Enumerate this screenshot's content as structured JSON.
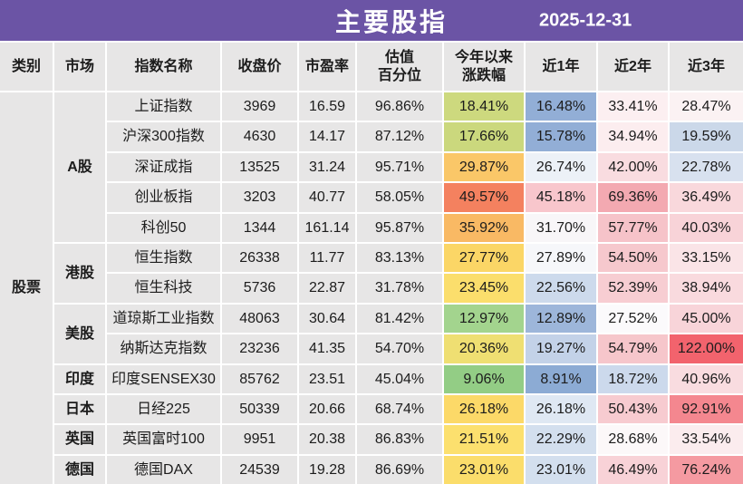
{
  "header": {
    "title": "主要股指",
    "date": "2025-12-31"
  },
  "colors": {
    "banner_purple": "#6B54A5",
    "banner_text": "#FFFFFF",
    "cell_gray": "#E7E6E6",
    "gridline_white": "#FFFFFF",
    "text_dark": "#1C1C1C"
  },
  "chart_data": {
    "type": "table",
    "title": "主要股指",
    "date": "2025-12-31",
    "category": "股票",
    "columns": [
      {
        "key": "category",
        "label": "类别"
      },
      {
        "key": "market",
        "label": "市场"
      },
      {
        "key": "index-name",
        "label": "指数名称"
      },
      {
        "key": "close-price",
        "label": "收盘价"
      },
      {
        "key": "pe-ratio",
        "label": "市盈率"
      },
      {
        "key": "valuation-percentile",
        "label": "估值\n百分位"
      },
      {
        "key": "ytd-change",
        "label": "今年以来\n涨跌幅"
      },
      {
        "key": "1y-return",
        "label": "近1年"
      },
      {
        "key": "2y-return",
        "label": "近2年"
      },
      {
        "key": "3y-return",
        "label": "近3年"
      }
    ],
    "rows": [
      {
        "market": {
          "label": "A股",
          "span": 5
        },
        "name": "上证指数",
        "close": "3969",
        "pe": "16.59",
        "pct": "96.86%",
        "ytd": {
          "t": "18.41%",
          "bg": "#CDD97E"
        },
        "y1": {
          "t": "16.48%",
          "bg": "#92AED6"
        },
        "y2": {
          "t": "33.41%",
          "bg": "#FCEFF1"
        },
        "y3": {
          "t": "28.47%",
          "bg": "#FBF2F3"
        }
      },
      {
        "name": "沪深300指数",
        "close": "4630",
        "pe": "14.17",
        "pct": "87.12%",
        "ytd": {
          "t": "17.66%",
          "bg": "#CBD87D"
        },
        "y1": {
          "t": "15.78%",
          "bg": "#92AED6"
        },
        "y2": {
          "t": "34.94%",
          "bg": "#FCEDEF"
        },
        "y3": {
          "t": "19.59%",
          "bg": "#CBD8E9"
        }
      },
      {
        "name": "深证成指",
        "close": "13525",
        "pe": "31.24",
        "pct": "95.71%",
        "ytd": {
          "t": "29.87%",
          "bg": "#FAC768"
        },
        "y1": {
          "t": "26.74%",
          "bg": "#ECF1F7"
        },
        "y2": {
          "t": "42.00%",
          "bg": "#F9DCE0"
        },
        "y3": {
          "t": "22.78%",
          "bg": "#D8E1EF"
        }
      },
      {
        "name": "创业板指",
        "close": "3203",
        "pe": "40.77",
        "pct": "58.05%",
        "ytd": {
          "t": "49.57%",
          "bg": "#F4815F"
        },
        "y1": {
          "t": "45.18%",
          "bg": "#F8C6CC"
        },
        "y2": {
          "t": "69.36%",
          "bg": "#F3A9B1"
        },
        "y3": {
          "t": "36.49%",
          "bg": "#F9D8DC"
        }
      },
      {
        "name": "科创50",
        "close": "1344",
        "pe": "161.14",
        "pct": "95.87%",
        "ytd": {
          "t": "35.92%",
          "bg": "#F9B964"
        },
        "y1": {
          "t": "31.70%",
          "bg": "#F8F6F8"
        },
        "y2": {
          "t": "57.77%",
          "bg": "#F6C3C9"
        },
        "y3": {
          "t": "40.03%",
          "bg": "#F8D3D8"
        }
      },
      {
        "market": {
          "label": "港股",
          "span": 2
        },
        "name": "恒生指数",
        "close": "26338",
        "pe": "11.77",
        "pct": "83.13%",
        "ytd": {
          "t": "27.77%",
          "bg": "#FBD666"
        },
        "y1": {
          "t": "27.89%",
          "bg": "#F6F7FA"
        },
        "y2": {
          "t": "54.50%",
          "bg": "#F6C8CD"
        },
        "y3": {
          "t": "33.15%",
          "bg": "#FAE4E7"
        }
      },
      {
        "name": "恒生科技",
        "close": "5736",
        "pe": "22.87",
        "pct": "31.78%",
        "ytd": {
          "t": "23.45%",
          "bg": "#FBDE6C"
        },
        "y1": {
          "t": "22.56%",
          "bg": "#CDDAEC"
        },
        "y2": {
          "t": "52.39%",
          "bg": "#F7CDD2"
        },
        "y3": {
          "t": "38.94%",
          "bg": "#F9DADE"
        }
      },
      {
        "market": {
          "label": "美股",
          "span": 2
        },
        "name": "道琼斯工业指数",
        "close": "48063",
        "pe": "30.64",
        "pct": "81.42%",
        "ytd": {
          "t": "12.97%",
          "bg": "#A3D48E"
        },
        "y1": {
          "t": "12.89%",
          "bg": "#9DB6DA"
        },
        "y2": {
          "t": "27.52%",
          "bg": "#FBFAFC"
        },
        "y3": {
          "t": "45.00%",
          "bg": "#F8D4D9"
        }
      },
      {
        "name": "纳斯达克指数",
        "close": "23236",
        "pe": "41.35",
        "pct": "54.70%",
        "ytd": {
          "t": "20.36%",
          "bg": "#EFDF72"
        },
        "y1": {
          "t": "19.27%",
          "bg": "#C3D2E8"
        },
        "y2": {
          "t": "54.79%",
          "bg": "#F6C6CB"
        },
        "y3": {
          "t": "122.00%",
          "bg": "#F2636D"
        }
      },
      {
        "market": {
          "label": "印度",
          "span": 1
        },
        "name": "印度SENSEX30",
        "close": "85762",
        "pe": "23.51",
        "pct": "45.04%",
        "ytd": {
          "t": "9.06%",
          "bg": "#93CD85"
        },
        "y1": {
          "t": "8.91%",
          "bg": "#8CABD4"
        },
        "y2": {
          "t": "18.72%",
          "bg": "#CCD9EC"
        },
        "y3": {
          "t": "40.96%",
          "bg": "#F9DCE0"
        }
      },
      {
        "market": {
          "label": "日本",
          "span": 1
        },
        "name": "日经225",
        "close": "50339",
        "pe": "20.66",
        "pct": "68.74%",
        "ytd": {
          "t": "26.18%",
          "bg": "#FCD968"
        },
        "y1": {
          "t": "26.18%",
          "bg": "#DFE8F3"
        },
        "y2": {
          "t": "50.43%",
          "bg": "#F7CBD0"
        },
        "y3": {
          "t": "92.91%",
          "bg": "#F4878F"
        }
      },
      {
        "market": {
          "label": "英国",
          "span": 1
        },
        "name": "英国富时100",
        "close": "9951",
        "pe": "20.38",
        "pct": "86.83%",
        "ytd": {
          "t": "21.51%",
          "bg": "#FCE06E"
        },
        "y1": {
          "t": "22.29%",
          "bg": "#D3DFEE"
        },
        "y2": {
          "t": "28.68%",
          "bg": "#FCF8F9"
        },
        "y3": {
          "t": "33.54%",
          "bg": "#FBECEE"
        }
      },
      {
        "market": {
          "label": "德国",
          "span": 1
        },
        "name": "德国DAX",
        "close": "24539",
        "pe": "19.28",
        "pct": "86.69%",
        "ytd": {
          "t": "23.01%",
          "bg": "#FBDD6B"
        },
        "y1": {
          "t": "23.01%",
          "bg": "#D3DFEE"
        },
        "y2": {
          "t": "46.49%",
          "bg": "#F8D2D7"
        },
        "y3": {
          "t": "76.24%",
          "bg": "#F59AA1"
        }
      }
    ]
  }
}
